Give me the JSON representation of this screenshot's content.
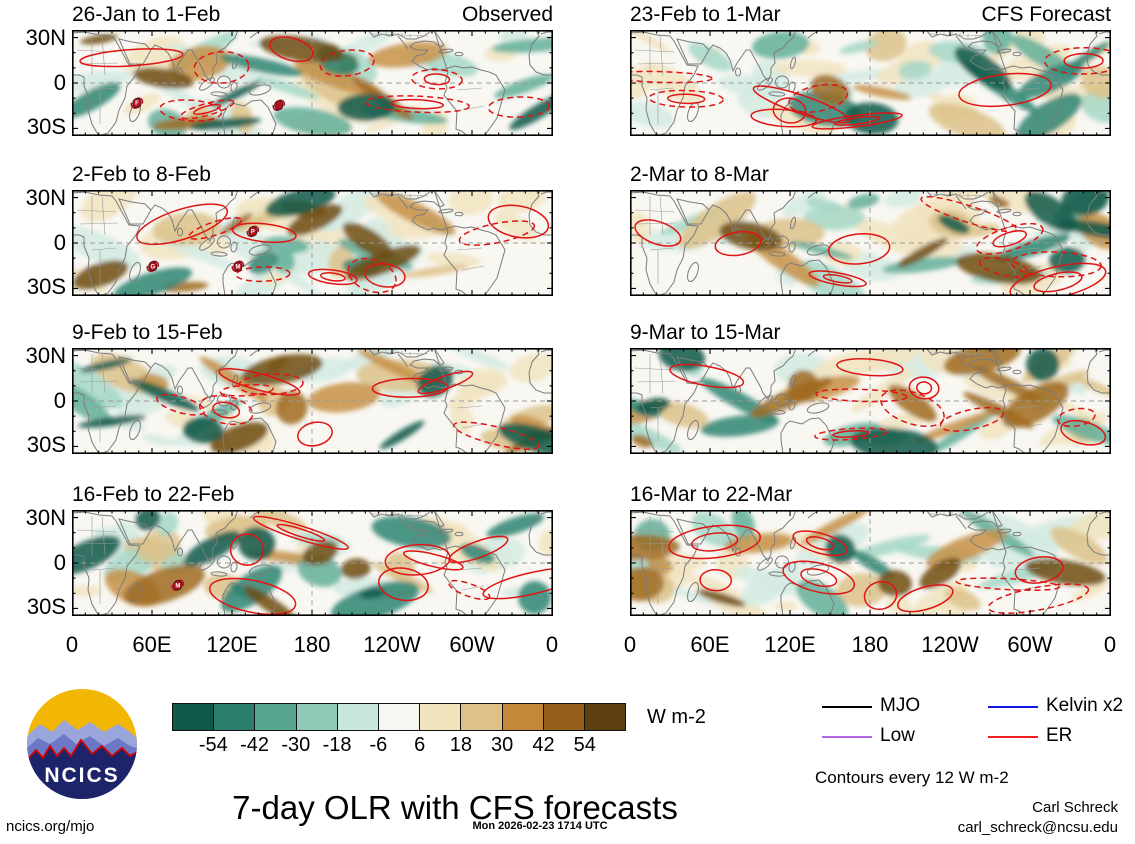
{
  "figure": {
    "title": "7-day OLR with CFS forecasts",
    "timestamp": "Mon 2026-02-23 1714 UTC",
    "credit_name": "Carl Schreck",
    "credit_email": "carl_schreck@ncsu.edu",
    "site": "ncics.org/mjo",
    "logo_text": "NCICS",
    "contour_note": "Contours every 12 W m-2"
  },
  "columns": [
    {
      "header": "Observed"
    },
    {
      "header": "CFS Forecast"
    }
  ],
  "panels": [
    {
      "label": "26-Jan to 1-Feb",
      "corner": "Observed",
      "seed": 11,
      "storms": [
        {
          "fx": 0.135,
          "fy": 0.69,
          "letter": "F"
        },
        {
          "fx": 0.43,
          "fy": 0.71,
          "letter": ""
        }
      ]
    },
    {
      "label": "23-Feb to 1-Mar",
      "corner": "CFS Forecast",
      "seed": 22,
      "storms": []
    },
    {
      "label": "2-Feb to 8-Feb",
      "seed": 33,
      "storms": [
        {
          "fx": 0.376,
          "fy": 0.39,
          "letter": "P"
        },
        {
          "fx": 0.168,
          "fy": 0.72,
          "letter": "G"
        },
        {
          "fx": 0.345,
          "fy": 0.72,
          "letter": "M"
        }
      ]
    },
    {
      "label": "2-Mar to 8-Mar",
      "seed": 44,
      "storms": []
    },
    {
      "label": "9-Feb to 15-Feb",
      "seed": 55,
      "storms": []
    },
    {
      "label": "9-Mar to 15-Mar",
      "seed": 66,
      "storms": []
    },
    {
      "label": "16-Feb to 22-Feb",
      "seed": 77,
      "storms": [
        {
          "fx": 0.22,
          "fy": 0.71,
          "letter": "M"
        }
      ]
    },
    {
      "label": "16-Mar to 22-Mar",
      "seed": 88,
      "storms": []
    }
  ],
  "axes": {
    "lat_ticks": [
      "30N",
      "0",
      "30S"
    ],
    "lon_ticks": [
      "0",
      "60E",
      "120E",
      "180",
      "120W",
      "60W",
      "0"
    ]
  },
  "colorbar": {
    "units": "W m-2",
    "tick_labels": [
      "-54",
      "-42",
      "-30",
      "-18",
      "-6",
      "6",
      "18",
      "30",
      "42",
      "54"
    ],
    "colors": [
      "#115948",
      "#2a7e6b",
      "#57a692",
      "#8fcab8",
      "#c9e7dd",
      "#f7f6f0",
      "#f1e4bd",
      "#ddc189",
      "#c3883a",
      "#94601c",
      "#5e4010"
    ]
  },
  "legend": {
    "items": [
      {
        "label": "MJO",
        "color": "#000000"
      },
      {
        "label": "Kelvin x2",
        "color": "#1414e6"
      },
      {
        "label": "Low",
        "color": "#b266e6"
      },
      {
        "label": "ER",
        "color": "#ee2020"
      }
    ]
  },
  "chart_data": {
    "type": "heatmap",
    "title": "7-day OLR with CFS forecasts",
    "variable": "OLR anomaly",
    "units": "W m-2",
    "shading_levels": [
      -54,
      -42,
      -30,
      -18,
      -6,
      6,
      18,
      30,
      42,
      54
    ],
    "contour_interval": 12,
    "map_domain": {
      "lon": [
        0,
        360
      ],
      "lat": [
        -35,
        35
      ]
    },
    "lon_ticks": [
      "0",
      "60E",
      "120E",
      "180",
      "120W",
      "60W",
      "0"
    ],
    "lat_ticks": [
      "30N",
      "0",
      "30S"
    ],
    "columns": [
      "Observed",
      "CFS Forecast"
    ],
    "panels": [
      {
        "period": "26-Jan to 1-Feb",
        "column": "Observed"
      },
      {
        "period": "2-Feb to 8-Feb",
        "column": "Observed"
      },
      {
        "period": "9-Feb to 15-Feb",
        "column": "Observed"
      },
      {
        "period": "16-Feb to 22-Feb",
        "column": "Observed"
      },
      {
        "period": "23-Feb to 1-Mar",
        "column": "CFS Forecast"
      },
      {
        "period": "2-Mar to 8-Mar",
        "column": "CFS Forecast"
      },
      {
        "period": "9-Mar to 15-Mar",
        "column": "CFS Forecast"
      },
      {
        "period": "16-Mar to 22-Mar",
        "column": "CFS Forecast"
      }
    ],
    "wave_contours": [
      "MJO",
      "Low",
      "Kelvin x2",
      "ER"
    ],
    "legend_position": "bottom-right",
    "grid": "dashed equator and dateline reference lines"
  }
}
